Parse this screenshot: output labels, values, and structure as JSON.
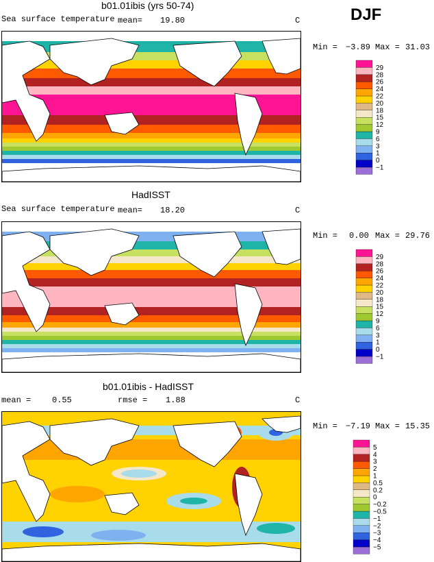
{
  "season": "DJF",
  "panels": [
    {
      "title": "b01.01ibis (yrs 50-74)",
      "left_label": "Sea surface temperature",
      "mean_label": "mean=",
      "mean_value": "19.80",
      "unit": "C",
      "minmax": {
        "min_label": "Min =",
        "min": "−3.89",
        "max_label": "Max =",
        "max": "31.03"
      },
      "colors": [
        "#9b6fd6",
        "#0000c8",
        "#2f63e0",
        "#7fb0f0",
        "#a8dceb",
        "#1fb4a8",
        "#a0c830",
        "#c8e060",
        "#f5e8c8",
        "#deb887",
        "#ffd200",
        "#ffa500",
        "#ff5a00",
        "#b22222",
        "#ffb6c1",
        "#ff1493"
      ],
      "labels": [
        "−1",
        "0",
        "1",
        "3",
        "6",
        "9",
        "12",
        "15",
        "18",
        "20",
        "22",
        "24",
        "26",
        "28",
        "29"
      ]
    },
    {
      "title": "HadISST",
      "left_label": "Sea surface temperature",
      "mean_label": "mean=",
      "mean_value": "18.20",
      "unit": "C",
      "minmax": {
        "min_label": "Min =",
        "min": "0.00",
        "max_label": "Max =",
        "max": "29.76"
      },
      "colors": [
        "#9b6fd6",
        "#0000c8",
        "#2f63e0",
        "#7fb0f0",
        "#a8dceb",
        "#1fb4a8",
        "#a0c830",
        "#c8e060",
        "#f5e8c8",
        "#deb887",
        "#ffd200",
        "#ffa500",
        "#ff5a00",
        "#b22222",
        "#ffb6c1",
        "#ff1493"
      ],
      "labels": [
        "−1",
        "0",
        "1",
        "3",
        "6",
        "9",
        "12",
        "15",
        "18",
        "20",
        "22",
        "24",
        "26",
        "28",
        "29"
      ]
    },
    {
      "title": "b01.01ibis - HadISST",
      "left_label": "mean =",
      "mean_value": "0.55",
      "rmse_label": "rmse =",
      "rmse_value": "1.88",
      "unit": "C",
      "minmax": {
        "min_label": "Min =",
        "min": "−7.19",
        "max_label": "Max =",
        "max": "15.35"
      },
      "colors": [
        "#9b6fd6",
        "#0000c8",
        "#2f63e0",
        "#7fb0f0",
        "#a8dceb",
        "#1fb4a8",
        "#a0c830",
        "#c8e060",
        "#f5e8c8",
        "#deb887",
        "#ffd200",
        "#ffa500",
        "#ff5a00",
        "#b22222",
        "#ffb6c1",
        "#ff1493"
      ],
      "labels": [
        "−5",
        "−4",
        "−3",
        "−2",
        "−1",
        "−0.5",
        "−0.2",
        "0",
        "0.2",
        "0.5",
        "1",
        "2",
        "3",
        "4",
        "5"
      ]
    }
  ]
}
